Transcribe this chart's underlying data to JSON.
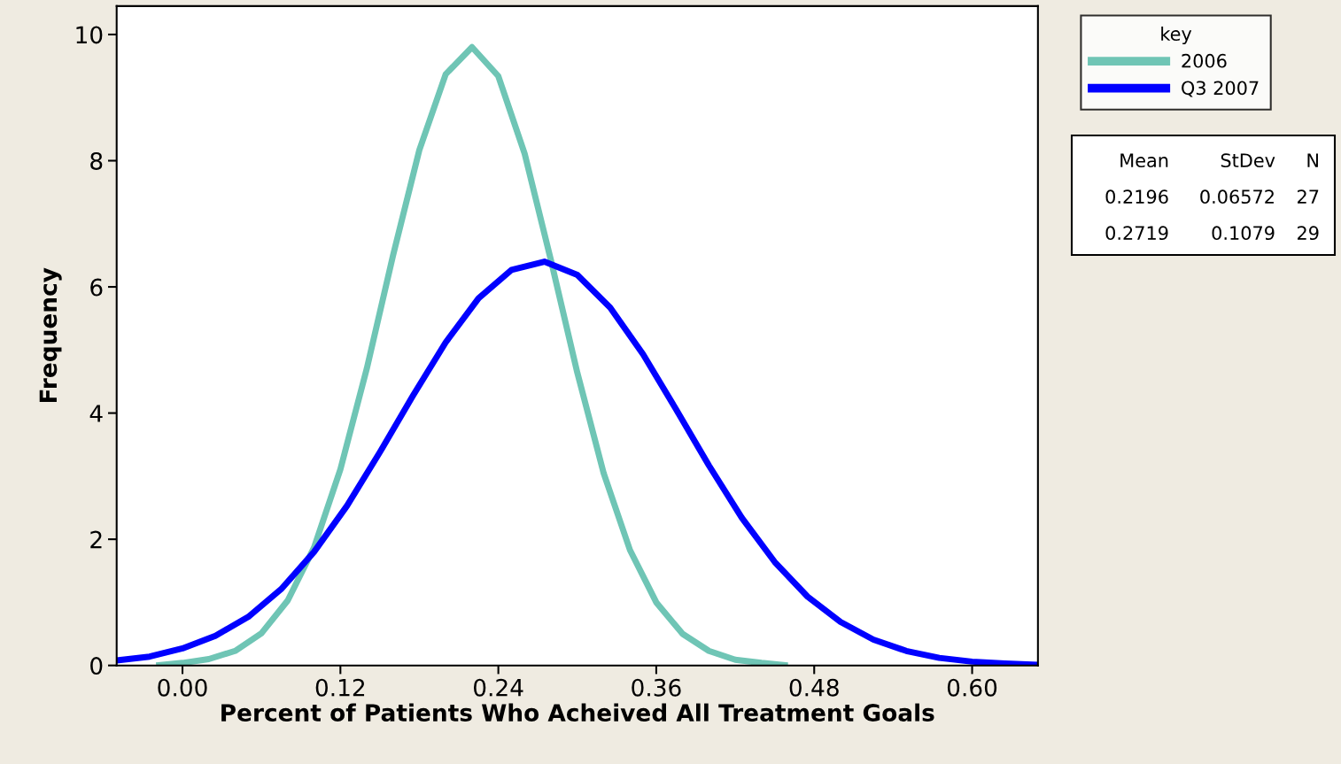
{
  "chart_data": {
    "type": "line",
    "xlabel": "Percent of Patients Who Acheived All Treatment Goals",
    "ylabel": "Frequency",
    "legend_title": "key",
    "legend": "top right",
    "xlim": [
      -0.05,
      0.65
    ],
    "xticks": [
      {
        "value": 0.0,
        "label": "0.00"
      },
      {
        "value": 0.12,
        "label": "0.12"
      },
      {
        "value": 0.24,
        "label": "0.24"
      },
      {
        "value": 0.36,
        "label": "0.36"
      },
      {
        "value": 0.48,
        "label": "0.48"
      },
      {
        "value": 0.6,
        "label": "0.60"
      }
    ],
    "ylim": [
      0,
      10.45
    ],
    "yticks": [
      0,
      2,
      4,
      6,
      8,
      10
    ],
    "grid": false,
    "series": [
      {
        "name": "2006",
        "color": "#6fc5b5",
        "x": [
          -0.02,
          0.0,
          0.02,
          0.04,
          0.06,
          0.08,
          0.1,
          0.12,
          0.14,
          0.16,
          0.18,
          0.2,
          0.22,
          0.24,
          0.26,
          0.28,
          0.3,
          0.32,
          0.34,
          0.36,
          0.38,
          0.4,
          0.42,
          0.44,
          0.46
        ],
        "values": [
          0.0,
          0.04,
          0.1,
          0.23,
          0.51,
          1.03,
          1.87,
          3.11,
          4.7,
          6.5,
          8.17,
          9.37,
          9.8,
          9.34,
          8.11,
          6.42,
          4.64,
          3.05,
          1.83,
          1.0,
          0.5,
          0.23,
          0.09,
          0.04,
          0.0
        ]
      },
      {
        "name": "Q3 2007",
        "color": "#0000ff",
        "x": [
          -0.05,
          -0.025,
          0.0,
          0.025,
          0.05,
          0.075,
          0.1,
          0.125,
          0.15,
          0.175,
          0.2,
          0.225,
          0.25,
          0.275,
          0.3,
          0.325,
          0.35,
          0.375,
          0.4,
          0.425,
          0.45,
          0.475,
          0.5,
          0.525,
          0.55,
          0.575,
          0.6,
          0.625,
          0.65
        ],
        "values": [
          0.08,
          0.14,
          0.27,
          0.47,
          0.77,
          1.21,
          1.8,
          2.53,
          3.38,
          4.27,
          5.12,
          5.82,
          6.27,
          6.4,
          6.19,
          5.67,
          4.93,
          4.06,
          3.17,
          2.34,
          1.64,
          1.09,
          0.69,
          0.41,
          0.23,
          0.12,
          0.06,
          0.03,
          0.01
        ]
      }
    ],
    "annotations": [
      "Mean",
      "StDev",
      "N",
      "0.2196",
      "0.06572",
      "27",
      "0.2719",
      "0.1079",
      "29"
    ]
  }
}
